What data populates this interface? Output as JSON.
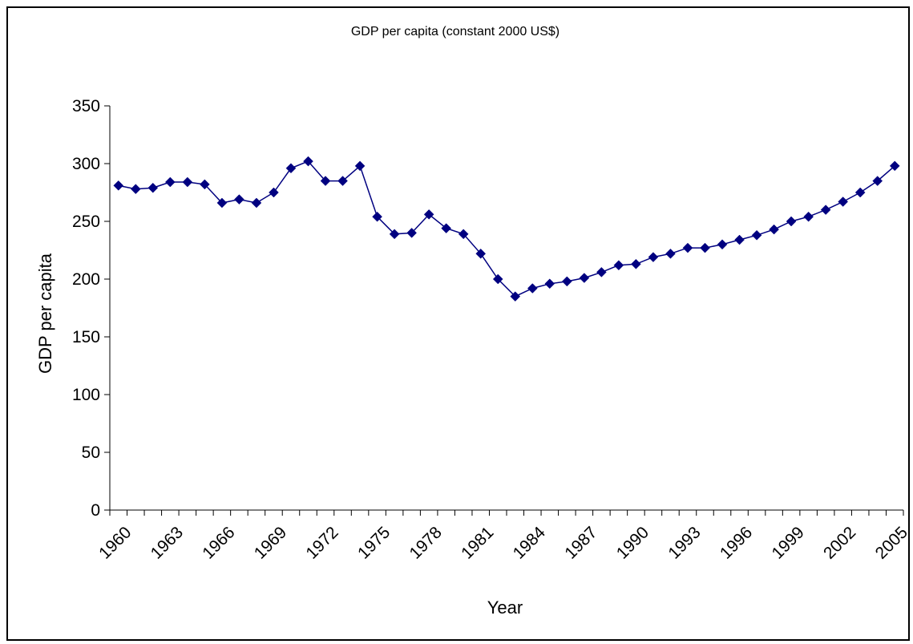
{
  "chart_data": {
    "type": "line",
    "title": "GDP per capita (constant 2000 US$)",
    "xlabel": "Year",
    "ylabel": "GDP  per capita",
    "ylim": [
      0,
      350
    ],
    "yticks": [
      0,
      50,
      100,
      150,
      200,
      250,
      300,
      350
    ],
    "xtick_labels": [
      "1960",
      "1963",
      "1966",
      "1969",
      "1972",
      "1975",
      "1978",
      "1981",
      "1984",
      "1987",
      "1990",
      "1993",
      "1996",
      "1999",
      "2002",
      "2005"
    ],
    "grid": false,
    "legend": "none",
    "marker": "diamond",
    "series_color": "#000080",
    "x": [
      1960,
      1961,
      1962,
      1963,
      1964,
      1965,
      1966,
      1967,
      1968,
      1969,
      1970,
      1971,
      1972,
      1973,
      1974,
      1975,
      1976,
      1977,
      1978,
      1979,
      1980,
      1981,
      1982,
      1983,
      1984,
      1985,
      1986,
      1987,
      1988,
      1989,
      1990,
      1991,
      1992,
      1993,
      1994,
      1995,
      1996,
      1997,
      1998,
      1999,
      2000,
      2001,
      2002,
      2003,
      2004,
      2005
    ],
    "series": [
      {
        "values": [
          281,
          278,
          279,
          284,
          284,
          282,
          266,
          269,
          266,
          275,
          296,
          302,
          285,
          285,
          298,
          254,
          239,
          240,
          256,
          244,
          239,
          222,
          200,
          185,
          192,
          196,
          198,
          201,
          206,
          212,
          213,
          219,
          222,
          227,
          227,
          230,
          234,
          238,
          243,
          250,
          254,
          260,
          267,
          275,
          285,
          298
        ]
      }
    ]
  }
}
